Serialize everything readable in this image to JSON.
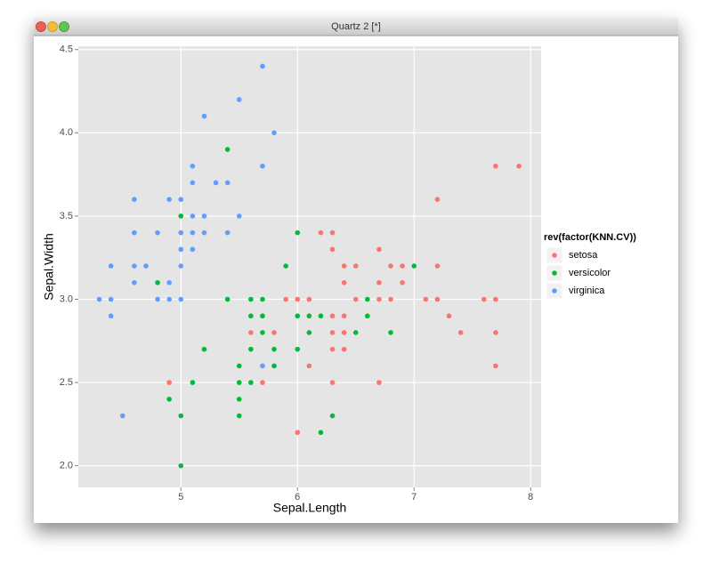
{
  "window_title": "Quartz 2 [*]",
  "chart_data": {
    "type": "scatter",
    "x_label": "Sepal.Length",
    "y_label": "Sepal.Width",
    "legend_title": "rev(factor(KNN.CV))",
    "legend_position": "right",
    "grid": true,
    "xlim": [
      4.12,
      8.09
    ],
    "ylim": [
      1.87,
      4.52
    ],
    "xticks": [
      5,
      6,
      7,
      8
    ],
    "yticks": [
      {
        "value": 2.0,
        "label": "2.0"
      },
      2.5,
      {
        "value": 3.0,
        "label": "3.0"
      },
      3.5,
      {
        "value": 4.0,
        "label": "4.0"
      },
      4.5
    ],
    "series": [
      {
        "name": "setosa",
        "color": "#f8766d",
        "x": [
          4.9,
          5.6,
          5.7,
          5.8,
          5.9,
          6.0,
          6.0,
          6.1,
          6.1,
          6.2,
          6.3,
          6.3,
          6.3,
          6.3,
          6.3,
          6.3,
          6.4,
          6.4,
          6.4,
          6.4,
          6.4,
          6.5,
          6.5,
          6.7,
          6.7,
          6.7,
          6.7,
          6.8,
          6.8,
          6.9,
          6.9,
          7.1,
          7.2,
          7.2,
          7.2,
          7.3,
          7.4,
          7.6,
          7.7,
          7.7,
          7.7,
          7.7,
          7.9
        ],
        "y": [
          2.5,
          2.8,
          2.5,
          2.8,
          3.0,
          3.0,
          2.2,
          3.0,
          2.6,
          3.4,
          3.4,
          3.3,
          2.9,
          2.8,
          2.7,
          2.5,
          3.2,
          3.1,
          2.9,
          2.8,
          2.7,
          3.2,
          3.0,
          3.3,
          3.1,
          3.0,
          2.5,
          3.2,
          3.0,
          3.2,
          3.1,
          3.0,
          3.6,
          3.2,
          3.0,
          2.9,
          2.8,
          3.0,
          3.8,
          3.0,
          2.8,
          2.6,
          3.8
        ]
      },
      {
        "name": "versicolor",
        "color": "#00ba38",
        "x": [
          5.0,
          5.0,
          4.9,
          4.8,
          5.0,
          5.1,
          5.2,
          5.4,
          5.4,
          5.5,
          5.5,
          5.5,
          5.5,
          5.6,
          5.6,
          5.6,
          5.6,
          5.7,
          5.7,
          5.7,
          5.8,
          5.8,
          5.9,
          6.0,
          6.0,
          6.0,
          6.1,
          6.1,
          6.2,
          6.2,
          6.3,
          6.5,
          6.6,
          6.6,
          6.8,
          7.0
        ],
        "y": [
          2.0,
          2.3,
          2.4,
          3.1,
          3.5,
          2.5,
          2.7,
          3.9,
          3.0,
          2.6,
          2.5,
          2.4,
          2.3,
          3.0,
          2.9,
          2.7,
          2.5,
          3.0,
          2.9,
          2.8,
          2.7,
          2.6,
          3.2,
          3.4,
          2.9,
          2.7,
          2.9,
          2.8,
          2.9,
          2.2,
          2.3,
          2.8,
          3.0,
          2.9,
          2.8,
          3.2
        ]
      },
      {
        "name": "virginica",
        "color": "#619cff",
        "x": [
          4.3,
          4.4,
          4.4,
          4.4,
          4.5,
          4.6,
          4.6,
          4.6,
          4.6,
          4.7,
          4.8,
          4.8,
          4.9,
          4.9,
          4.9,
          5.0,
          5.0,
          5.0,
          5.0,
          5.0,
          5.1,
          5.1,
          5.1,
          5.1,
          5.1,
          5.2,
          5.2,
          5.2,
          5.3,
          5.4,
          5.4,
          5.5,
          5.5,
          5.7,
          5.7,
          5.7,
          5.8
        ],
        "y": [
          3.0,
          3.2,
          3.0,
          2.9,
          2.3,
          3.6,
          3.4,
          3.2,
          3.1,
          3.2,
          3.4,
          3.0,
          3.6,
          3.1,
          3.0,
          3.6,
          3.4,
          3.3,
          3.2,
          3.0,
          3.8,
          3.7,
          3.5,
          3.4,
          3.3,
          4.1,
          3.5,
          3.4,
          3.7,
          3.7,
          3.4,
          4.2,
          3.5,
          4.4,
          3.8,
          2.6,
          4.0
        ]
      }
    ]
  }
}
